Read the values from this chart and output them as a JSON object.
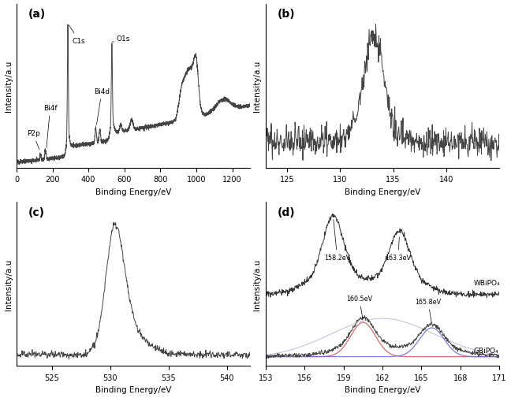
{
  "fig_bg": "#ffffff",
  "panel_bg": "#ffffff",
  "line_color": "#444444",
  "xlabel": "Binding Energy/eV",
  "ylabel": "Intensity/a.u",
  "panel_a": {
    "label": "(a)",
    "xlim": [
      0,
      1300
    ],
    "xticks": [
      0,
      200,
      400,
      600,
      800,
      1000,
      1200
    ]
  },
  "panel_b": {
    "label": "(b)",
    "xlim": [
      123,
      145
    ],
    "xticks": [
      125,
      130,
      135,
      140
    ]
  },
  "panel_c": {
    "label": "(c)",
    "xlim": [
      522,
      542
    ],
    "xticks": [
      525,
      530,
      535,
      540
    ]
  },
  "panel_d": {
    "label": "(d)",
    "xlim": [
      153,
      171
    ],
    "xticks": [
      153,
      156,
      159,
      162,
      165,
      168,
      171
    ]
  }
}
